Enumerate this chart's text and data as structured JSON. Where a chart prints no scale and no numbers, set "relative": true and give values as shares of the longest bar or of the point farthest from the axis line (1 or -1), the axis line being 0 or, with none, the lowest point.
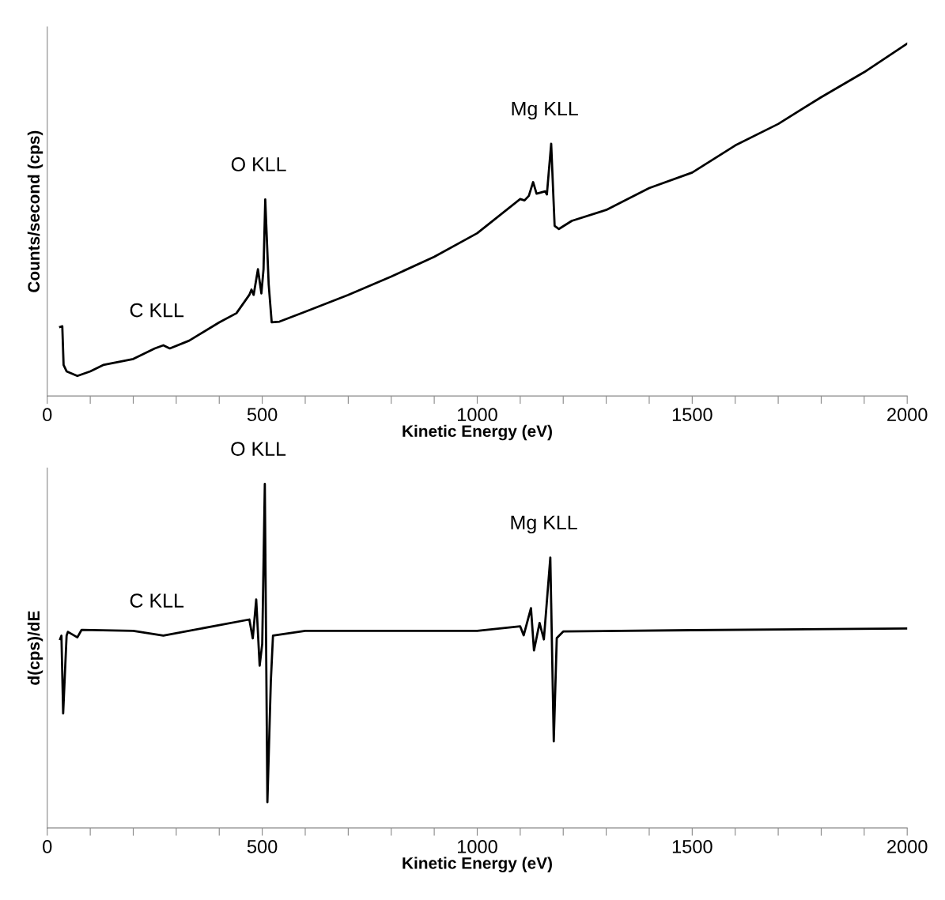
{
  "chart_data": [
    {
      "type": "line",
      "xlabel": "Kinetic Energy (eV)",
      "ylabel": "Counts/second (cps)",
      "relative": true,
      "xlim": [
        0,
        2000
      ],
      "xticks": [
        0,
        {
          "value": 100,
          "label": null
        },
        {
          "value": 200,
          "label": null
        },
        {
          "value": 300,
          "label": null
        },
        {
          "value": 400,
          "label": null
        },
        500,
        {
          "value": 600,
          "label": null
        },
        {
          "value": 700,
          "label": null
        },
        {
          "value": 800,
          "label": null
        },
        {
          "value": 900,
          "label": null
        },
        1000,
        {
          "value": 1100,
          "label": null
        },
        {
          "value": 1200,
          "label": null
        },
        {
          "value": 1300,
          "label": null
        },
        {
          "value": 1400,
          "label": null
        },
        1500,
        {
          "value": 1600,
          "label": null
        },
        {
          "value": 1700,
          "label": null
        },
        {
          "value": 1800,
          "label": null
        },
        {
          "value": 1900,
          "label": null
        },
        2000
      ],
      "grid": false,
      "legend": false,
      "series": [
        {
          "color": "#000000",
          "x": [
            30,
            35,
            38,
            45,
            70,
            100,
            130,
            200,
            250,
            270,
            285,
            330,
            400,
            440,
            470,
            475,
            480,
            490,
            498,
            503,
            507,
            515,
            522,
            540,
            600,
            700,
            800,
            900,
            1000,
            1100,
            1110,
            1120,
            1130,
            1138,
            1158,
            1162,
            1172,
            1180,
            1190,
            1220,
            1300,
            1400,
            1500,
            1600,
            1700,
            1800,
            1900,
            2000
          ],
          "values": [
            0.196,
            0.198,
            0.088,
            0.07,
            0.057,
            0.07,
            0.088,
            0.105,
            0.135,
            0.144,
            0.135,
            0.157,
            0.209,
            0.235,
            0.287,
            0.302,
            0.287,
            0.36,
            0.291,
            0.36,
            0.558,
            0.317,
            0.209,
            0.211,
            0.239,
            0.287,
            0.339,
            0.395,
            0.462,
            0.559,
            0.555,
            0.568,
            0.607,
            0.574,
            0.581,
            0.572,
            0.716,
            0.483,
            0.474,
            0.497,
            0.528,
            0.59,
            0.634,
            0.711,
            0.772,
            0.848,
            0.919,
            1.0
          ]
        }
      ],
      "annotations": [
        {
          "text": "C KLL",
          "x": 270,
          "y": 0.144
        },
        {
          "text": "O KLL",
          "x": 507,
          "y": 0.558
        },
        {
          "text": "Mg KLL",
          "x": 1172,
          "y": 0.716
        }
      ]
    },
    {
      "type": "line",
      "xlabel": "Kinetic Energy (eV)",
      "ylabel": "d(cps)/dE",
      "relative": true,
      "xlim": [
        0,
        2000
      ],
      "xticks": [
        0,
        {
          "value": 100,
          "label": null
        },
        {
          "value": 200,
          "label": null
        },
        {
          "value": 300,
          "label": null
        },
        {
          "value": 400,
          "label": null
        },
        500,
        {
          "value": 600,
          "label": null
        },
        {
          "value": 700,
          "label": null
        },
        {
          "value": 800,
          "label": null
        },
        {
          "value": 900,
          "label": null
        },
        1000,
        {
          "value": 1100,
          "label": null
        },
        {
          "value": 1200,
          "label": null
        },
        {
          "value": 1300,
          "label": null
        },
        {
          "value": 1400,
          "label": null
        },
        1500,
        {
          "value": 1600,
          "label": null
        },
        {
          "value": 1700,
          "label": null
        },
        {
          "value": 1800,
          "label": null
        },
        {
          "value": 1900,
          "label": null
        },
        2000
      ],
      "grid": false,
      "legend": false,
      "series": [
        {
          "color": "#000000",
          "x": [
            30,
            33,
            37,
            45,
            48,
            70,
            80,
            200,
            270,
            470,
            478,
            486,
            494,
            500,
            506,
            512,
            520,
            525,
            600,
            1000,
            1100,
            1108,
            1125,
            1132,
            1145,
            1155,
            1170,
            1178,
            1185,
            1200,
            1500,
            2000
          ],
          "values": [
            0.549,
            0.559,
            0.333,
            0.559,
            0.57,
            0.554,
            0.576,
            0.573,
            0.559,
            0.606,
            0.551,
            0.664,
            0.472,
            0.535,
            1.0,
            0.075,
            0.427,
            0.559,
            0.573,
            0.573,
            0.586,
            0.56,
            0.639,
            0.516,
            0.596,
            0.548,
            0.786,
            0.252,
            0.552,
            0.571,
            0.575,
            0.58
          ]
        }
      ],
      "annotations": [
        {
          "text": "C KLL",
          "x": 270,
          "y": 0.559
        },
        {
          "text": "O KLL",
          "x": 506,
          "y": 1.0
        },
        {
          "text": "Mg KLL",
          "x": 1170,
          "y": 0.786
        }
      ]
    }
  ]
}
